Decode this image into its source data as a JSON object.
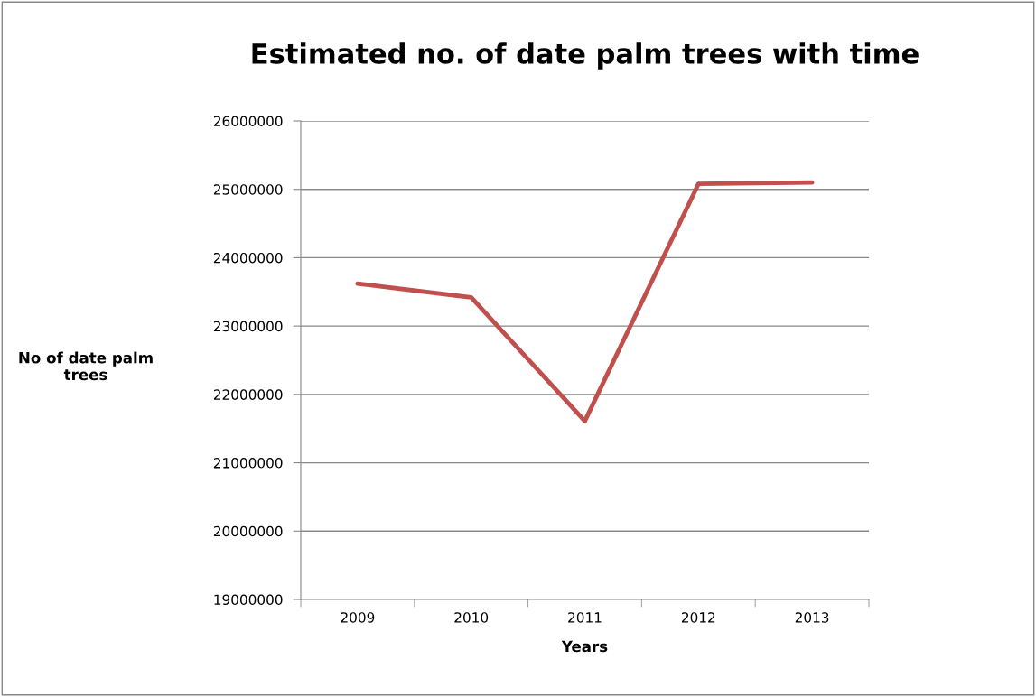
{
  "chart_data": {
    "type": "line",
    "title": "Estimated no. of date palm trees with time",
    "xlabel": "Years",
    "ylabel": "No of date palm\ntrees",
    "categories": [
      "2009",
      "2010",
      "2011",
      "2012",
      "2013"
    ],
    "series": [
      {
        "color": "#c0504d",
        "values": [
          23620000,
          23420000,
          21610000,
          25080000,
          25100000
        ]
      }
    ],
    "ylim": [
      19000000,
      26000000
    ],
    "yticks": [
      19000000,
      20000000,
      21000000,
      22000000,
      23000000,
      24000000,
      25000000,
      26000000
    ],
    "grid": "y",
    "legend": false,
    "marker": "none",
    "line_style": "solid"
  }
}
